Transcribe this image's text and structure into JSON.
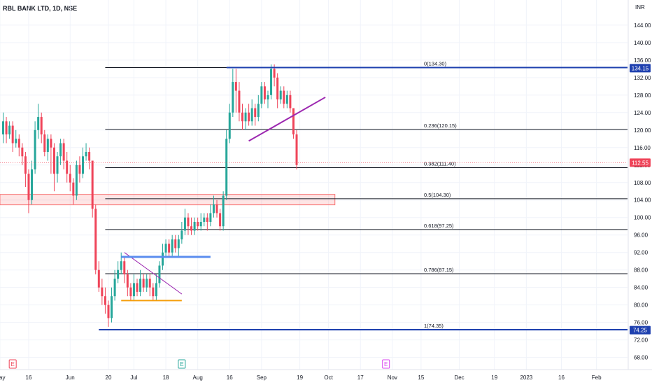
{
  "header": {
    "symbol": "RBL BANK LTD, 1D, NSE",
    "currency": "INR"
  },
  "chart_data": {
    "type": "candlestick",
    "title": "RBL BANK LTD, 1D, NSE",
    "ylim": [
      66.5,
      147.5
    ],
    "y_ticks": [
      144,
      140,
      136,
      132,
      128,
      124,
      120,
      116,
      112,
      108,
      104,
      100,
      96,
      92,
      88,
      84,
      80,
      76,
      72,
      68
    ],
    "x_ticks": [
      {
        "label": "May",
        "i": -1
      },
      {
        "label": "16",
        "i": 8
      },
      {
        "label": "Jun",
        "i": 21
      },
      {
        "label": "20",
        "i": 33
      },
      {
        "label": "Jul",
        "i": 41
      },
      {
        "label": "18",
        "i": 51
      },
      {
        "label": "Aug",
        "i": 61
      },
      {
        "label": "16",
        "i": 71
      },
      {
        "label": "Sep",
        "i": 81
      },
      {
        "label": "19",
        "i": 93
      },
      {
        "label": "Oct",
        "i": 102
      },
      {
        "label": "17",
        "i": 112
      },
      {
        "label": "Nov",
        "i": 122
      },
      {
        "label": "15",
        "i": 131
      },
      {
        "label": "Dec",
        "i": 143
      },
      {
        "label": "19",
        "i": 154
      },
      {
        "label": "2023",
        "i": 164
      },
      {
        "label": "16",
        "i": 175
      },
      {
        "label": "Feb",
        "i": 186
      }
    ],
    "candles": [
      [
        119,
        122,
        124,
        117
      ],
      [
        122,
        119,
        123,
        117
      ],
      [
        119,
        121,
        122,
        118
      ],
      [
        121,
        117,
        122,
        115
      ],
      [
        117,
        118,
        120,
        116
      ],
      [
        118,
        116,
        119,
        114
      ],
      [
        116,
        114,
        117,
        112
      ],
      [
        114,
        110,
        115,
        107
      ],
      [
        110,
        104,
        111,
        101
      ],
      [
        104,
        111,
        113,
        103
      ],
      [
        111,
        120,
        122,
        110
      ],
      [
        120,
        123,
        126,
        118
      ],
      [
        123,
        119,
        124,
        117
      ],
      [
        119,
        115,
        120,
        114
      ],
      [
        115,
        118,
        119,
        113
      ],
      [
        118,
        116,
        119,
        110
      ],
      [
        116,
        110,
        117,
        106
      ],
      [
        110,
        114,
        115,
        108
      ],
      [
        114,
        117,
        118,
        112
      ],
      [
        117,
        113,
        118,
        111
      ],
      [
        113,
        110,
        115,
        108
      ],
      [
        110,
        108,
        112,
        106
      ],
      [
        108,
        105,
        109,
        103
      ],
      [
        105,
        112,
        113,
        104
      ],
      [
        112,
        110,
        114,
        108
      ],
      [
        110,
        114,
        116,
        109
      ],
      [
        114,
        115,
        117,
        113
      ],
      [
        115,
        113,
        116,
        111
      ],
      [
        113,
        102,
        113,
        100
      ],
      [
        102,
        88,
        103,
        87
      ],
      [
        88,
        84,
        90,
        83
      ],
      [
        84,
        82,
        86,
        80
      ],
      [
        82,
        80,
        84,
        78
      ],
      [
        80,
        77,
        81,
        75
      ],
      [
        77,
        82,
        84,
        76
      ],
      [
        82,
        86,
        88,
        81
      ],
      [
        86,
        88,
        90,
        85
      ],
      [
        88,
        90,
        92,
        87
      ],
      [
        90,
        87,
        91,
        85
      ],
      [
        87,
        84,
        88,
        82
      ],
      [
        84,
        82,
        85,
        81
      ],
      [
        82,
        85,
        87,
        81
      ],
      [
        85,
        83,
        86,
        82
      ],
      [
        83,
        86,
        88,
        82
      ],
      [
        86,
        84,
        87,
        83
      ],
      [
        84,
        86,
        87,
        83
      ],
      [
        86,
        84,
        87,
        82
      ],
      [
        84,
        82,
        85,
        81
      ],
      [
        82,
        85,
        87,
        81
      ],
      [
        85,
        89,
        90,
        84
      ],
      [
        89,
        92,
        94,
        88
      ],
      [
        92,
        94,
        95,
        91
      ],
      [
        94,
        92,
        95,
        91
      ],
      [
        92,
        95,
        96,
        91
      ],
      [
        95,
        93,
        96,
        92
      ],
      [
        93,
        95,
        96,
        91
      ],
      [
        95,
        97,
        99,
        94
      ],
      [
        97,
        100,
        102,
        96
      ],
      [
        100,
        98,
        101,
        96
      ],
      [
        98,
        97,
        100,
        96
      ],
      [
        97,
        99,
        100,
        96
      ],
      [
        99,
        98,
        100,
        97
      ],
      [
        98,
        99,
        101,
        97
      ],
      [
        99,
        100,
        101,
        98
      ],
      [
        100,
        99,
        101,
        97
      ],
      [
        99,
        101,
        103,
        98
      ],
      [
        101,
        103,
        105,
        100
      ],
      [
        103,
        101,
        104,
        100
      ],
      [
        101,
        98,
        102,
        97
      ],
      [
        98,
        105,
        106,
        97
      ],
      [
        105,
        118,
        120,
        104
      ],
      [
        118,
        124,
        126,
        117
      ],
      [
        124,
        131,
        134,
        123
      ],
      [
        131,
        129,
        134,
        124
      ],
      [
        129,
        124,
        131,
        122
      ],
      [
        124,
        122,
        126,
        120
      ],
      [
        122,
        124,
        125,
        120
      ],
      [
        124,
        122,
        126,
        121
      ],
      [
        122,
        125,
        127,
        121
      ],
      [
        125,
        123,
        126,
        121
      ],
      [
        123,
        126,
        128,
        122
      ],
      [
        126,
        130,
        131,
        125
      ],
      [
        130,
        127,
        131,
        126
      ],
      [
        127,
        128,
        129,
        125
      ],
      [
        128,
        134,
        135,
        127
      ],
      [
        134,
        132,
        135,
        130
      ],
      [
        132,
        127,
        133,
        125
      ],
      [
        127,
        129,
        130,
        126
      ],
      [
        129,
        126,
        130,
        125
      ],
      [
        126,
        128,
        129,
        125
      ],
      [
        128,
        125,
        129,
        124
      ],
      [
        125,
        119,
        125,
        118
      ],
      [
        119,
        112,
        120,
        111
      ]
    ],
    "fib_levels": [
      {
        "label": "0(134.30)",
        "value": 134.3
      },
      {
        "label": "0.236(120.15)",
        "value": 120.15
      },
      {
        "label": "0.382(111.40)",
        "value": 111.4
      },
      {
        "label": "0.5(104.30)",
        "value": 104.3
      },
      {
        "label": "0.618(97.25)",
        "value": 97.25
      },
      {
        "label": "0.786(87.15)",
        "value": 87.15
      },
      {
        "label": "1(74.35)",
        "value": 74.35
      }
    ],
    "price_badges": [
      {
        "label": "134.15",
        "value": 134.15,
        "color": "#1e40af"
      },
      {
        "label": "112.55",
        "value": 112.55,
        "color": "#ef4459"
      },
      {
        "label": "74.25",
        "value": 74.25,
        "color": "#1e40af"
      }
    ],
    "events": [
      {
        "label": "E",
        "i": 3,
        "color": "#ef4459"
      },
      {
        "label": "E",
        "i": 56,
        "color": "#26a69a"
      },
      {
        "label": "E",
        "i": 120,
        "color": "#d946ef"
      }
    ],
    "colors": {
      "up": "#26a69a",
      "down": "#ef4459",
      "fib": "#131722",
      "support_zone": "#f87171",
      "trendline": "#9c27b0",
      "level_blue": "#1e40af",
      "orange_level": "#f59e0b",
      "blue_zone": "#5b8def"
    },
    "drawings": {
      "support_zone": {
        "from_i": -1,
        "to_i": 104,
        "top": 105.3,
        "bottom": 102.9
      },
      "triangle_support": {
        "from_i": 77,
        "from_y": 117.5,
        "to_i": 101,
        "to_y": 127.5
      },
      "small_downtrend": {
        "from_i": 38,
        "from_y": 92,
        "to_i": 56,
        "to_y": 82.5
      },
      "orange_level": {
        "from_i": 37,
        "to_i": 56,
        "value": 81
      },
      "blue_zone": {
        "from_i": 37,
        "to_i": 65,
        "value": 91
      },
      "top_blue_level": {
        "from_i": 70,
        "value": 134.3
      },
      "bottom_blue_level": {
        "from_i": 30,
        "value": 74.35
      },
      "fib_from_i": 32
    }
  }
}
